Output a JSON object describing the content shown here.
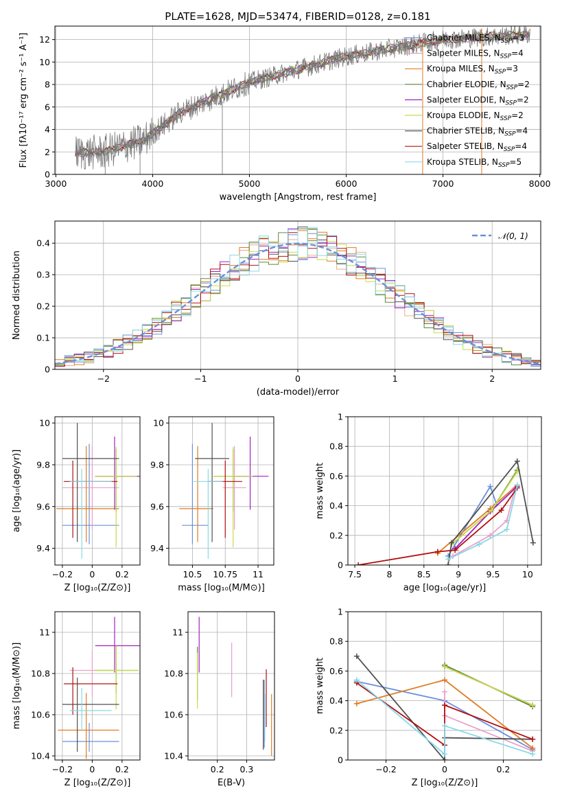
{
  "title": "PLATE=1628, MJD=53474, FIBERID=0128, z=0.181",
  "colors": [
    "#6a8fd9",
    "#e8ac8c",
    "#e07a1f",
    "#5c8a3c",
    "#a020c0",
    "#c8dc46",
    "#505050",
    "#b01010",
    "#88d8e8"
  ],
  "chart_data": [
    {
      "id": "spectrum",
      "type": "line",
      "xlabel": "wavelength [Angstrom, rest frame]",
      "ylabel": "Flux [fλ10⁻¹⁷ erg cm⁻² s⁻¹ A⁻¹]",
      "xlim": [
        2990,
        8010
      ],
      "ylim": [
        0,
        13.2
      ],
      "xticks": [
        3000,
        4000,
        5000,
        6000,
        7000,
        8000
      ],
      "yticks": [
        0,
        2,
        4,
        6,
        8,
        10,
        12
      ],
      "continuum": {
        "x": [
          3200,
          3500,
          3900,
          4300,
          5000,
          6000,
          7000,
          7900
        ],
        "y": [
          1.9,
          2.0,
          3.0,
          5.6,
          8.2,
          10.5,
          12.0,
          12.5
        ]
      },
      "legend": [
        {
          "name": "Chabrier MILES, N",
          "sub": "SSP",
          "tail": "=3",
          "color": "#6a8fd9"
        },
        {
          "name": "Salpeter MILES, N",
          "sub": "SSP",
          "tail": "=4",
          "color": "#e8a0c8"
        },
        {
          "name": "Kroupa MILES, N",
          "sub": "SSP",
          "tail": "=3",
          "color": "#e07a1f"
        },
        {
          "name": "Chabrier ELODIE, N",
          "sub": "SSP",
          "tail": "=2",
          "color": "#5c8a3c"
        },
        {
          "name": "Salpeter ELODIE, N",
          "sub": "SSP",
          "tail": "=2",
          "color": "#a020c0"
        },
        {
          "name": "Kroupa ELODIE, N",
          "sub": "SSP",
          "tail": "=2",
          "color": "#c8dc46"
        },
        {
          "name": "Chabrier STELIB, N",
          "sub": "SSP",
          "tail": "=4",
          "color": "#505050"
        },
        {
          "name": "Salpeter STELIB, N",
          "sub": "SSP",
          "tail": "=4",
          "color": "#b01010"
        },
        {
          "name": "Kroupa STELIB, N",
          "sub": "SSP",
          "tail": "=5",
          "color": "#88d8e8"
        }
      ]
    },
    {
      "id": "residuals",
      "type": "line",
      "xlabel": "(data-model)/error",
      "ylabel": "Normed distribution",
      "xlim": [
        -2.5,
        2.5
      ],
      "ylim": [
        0,
        0.47
      ],
      "xticks": [
        -2,
        -1,
        0,
        1,
        2
      ],
      "yticks": [
        0.0,
        0.1,
        0.2,
        0.3,
        0.4
      ],
      "normal_label": "𝒩(0, 1)",
      "normal_color": "#6a8fd9"
    },
    {
      "id": "age_vs_Z",
      "type": "errorbar",
      "xlabel": "Z [log₁₀(Z/Z⊙)]",
      "ylabel": "age  [log₁₀(age/yr)]",
      "xlim": [
        -0.25,
        0.32
      ],
      "ylim": [
        9.32,
        10.03
      ],
      "xticks": [
        -0.2,
        0.0,
        0.2
      ],
      "yticks": [
        9.4,
        9.6,
        9.8,
        10.0
      ],
      "points": [
        {
          "x": -0.02,
          "xerr": [
            0.18,
            0.2
          ],
          "y": 9.51,
          "yerr": [
            0.09,
            0.39
          ],
          "color": "#6a8fd9"
        },
        {
          "x": 0.0,
          "xerr": [
            0.2,
            0.18
          ],
          "y": 9.69,
          "yerr": [
            0.2,
            0.2
          ],
          "color": "#e8a0c8"
        },
        {
          "x": -0.04,
          "xerr": [
            0.2,
            0.22
          ],
          "y": 9.59,
          "yerr": [
            0.16,
            0.3
          ],
          "color": "#e07a1f"
        },
        {
          "x": 0.16,
          "xerr": [
            0.14,
            0.15
          ],
          "y": 9.745,
          "yerr": [
            0.17,
            0.13
          ],
          "color": "#5c8a3c"
        },
        {
          "x": 0.15,
          "xerr": [
            0.13,
            0.17
          ],
          "y": 9.745,
          "yerr": [
            0.16,
            0.19
          ],
          "color": "#a020c0"
        },
        {
          "x": 0.16,
          "xerr": [
            0.14,
            0.14
          ],
          "y": 9.745,
          "yerr": [
            0.34,
            0.14
          ],
          "color": "#c8dc46"
        },
        {
          "x": -0.1,
          "xerr": [
            0.1,
            0.28
          ],
          "y": 9.83,
          "yerr": [
            0.4,
            0.17
          ],
          "color": "#505050"
        },
        {
          "x": -0.13,
          "xerr": [
            0.06,
            0.3
          ],
          "y": 9.72,
          "yerr": [
            0.27,
            0.1
          ],
          "color": "#b01010"
        },
        {
          "x": -0.07,
          "xerr": [
            0.08,
            0.2
          ],
          "y": 9.72,
          "yerr": [
            0.37,
            0.06
          ],
          "color": "#88d8e8"
        }
      ]
    },
    {
      "id": "age_vs_mass",
      "type": "errorbar",
      "xlabel": "mass [log₁₀(M/M⊙)]",
      "ylabel": "",
      "xlim": [
        10.32,
        11.12
      ],
      "ylim": [
        9.32,
        10.03
      ],
      "xticks": [
        10.5,
        10.75,
        11.0
      ],
      "yticks": [
        9.4,
        9.6,
        9.8,
        10.0
      ],
      "points": [
        {
          "x": 10.5,
          "xerr": [
            0.08,
            0.12
          ],
          "y": 9.51,
          "yerr": [
            0.09,
            0.39
          ],
          "color": "#6a8fd9"
        },
        {
          "x": 10.82,
          "xerr": [
            0.09,
            0.09
          ],
          "y": 9.69,
          "yerr": [
            0.2,
            0.2
          ],
          "color": "#e8a0c8"
        },
        {
          "x": 10.54,
          "xerr": [
            0.14,
            0.12
          ],
          "y": 9.59,
          "yerr": [
            0.16,
            0.3
          ],
          "color": "#e07a1f"
        },
        {
          "x": 10.81,
          "xerr": [
            0.15,
            0.15
          ],
          "y": 9.745,
          "yerr": [
            0.17,
            0.13
          ],
          "color": "#5c8a3c"
        },
        {
          "x": 10.94,
          "xerr": [
            0.11,
            0.14
          ],
          "y": 9.745,
          "yerr": [
            0.16,
            0.19
          ],
          "color": "#a020c0"
        },
        {
          "x": 10.81,
          "xerr": [
            0.15,
            0.15
          ],
          "y": 9.745,
          "yerr": [
            0.34,
            0.14
          ],
          "color": "#c8dc46"
        },
        {
          "x": 10.65,
          "xerr": [
            0.13,
            0.13
          ],
          "y": 9.83,
          "yerr": [
            0.4,
            0.17
          ],
          "color": "#505050"
        },
        {
          "x": 10.75,
          "xerr": [
            0.13,
            0.13
          ],
          "y": 9.72,
          "yerr": [
            0.27,
            0.1
          ],
          "color": "#b01010"
        },
        {
          "x": 10.62,
          "xerr": [
            0.11,
            0.11
          ],
          "y": 9.72,
          "yerr": [
            0.37,
            0.06
          ],
          "color": "#88d8e8"
        }
      ]
    },
    {
      "id": "weight_vs_age",
      "type": "line",
      "xlabel": "age  [log₁₀(age/yr)]",
      "ylabel": "mass weight",
      "xlim": [
        7.4,
        10.2
      ],
      "ylim": [
        0,
        1.0
      ],
      "xticks": [
        7.5,
        8.0,
        8.5,
        9.0,
        9.5,
        10.0
      ],
      "yticks": [
        0.0,
        0.2,
        0.4,
        0.6,
        0.8,
        1.0
      ],
      "series": [
        {
          "color": "#6a8fd9",
          "x": [
            8.85,
            9.46,
            9.55
          ],
          "y": [
            0.06,
            0.53,
            0.41
          ]
        },
        {
          "color": "#e8a0c8",
          "x": [
            8.92,
            9.46,
            9.7,
            9.82
          ],
          "y": [
            0.06,
            0.2,
            0.3,
            0.52
          ]
        },
        {
          "color": "#e07a1f",
          "x": [
            8.7,
            9.46,
            9.85
          ],
          "y": [
            0.08,
            0.38,
            0.54
          ]
        },
        {
          "color": "#5c8a3c",
          "x": [
            8.9,
            9.48,
            9.85
          ],
          "y": [
            0.14,
            0.37,
            0.64
          ]
        },
        {
          "color": "#a020c0",
          "x": [
            8.95,
            9.46,
            9.85
          ],
          "y": [
            0.11,
            0.36,
            0.53
          ]
        },
        {
          "color": "#c8dc46",
          "x": [
            8.9,
            9.48,
            9.85
          ],
          "y": [
            0.14,
            0.37,
            0.63
          ]
        },
        {
          "color": "#505050",
          "x": [
            8.85,
            8.9,
            9.85,
            10.08
          ],
          "y": [
            0.0,
            0.15,
            0.7,
            0.15
          ]
        },
        {
          "color": "#b01010",
          "x": [
            7.55,
            8.7,
            8.95,
            9.62,
            9.85
          ],
          "y": [
            0.0,
            0.09,
            0.1,
            0.37,
            0.52
          ]
        },
        {
          "color": "#88d8e8",
          "x": [
            8.85,
            9.3,
            9.7,
            9.85
          ],
          "y": [
            0.04,
            0.14,
            0.24,
            0.54
          ]
        }
      ]
    },
    {
      "id": "mass_vs_Z",
      "type": "errorbar",
      "xlabel": "Z [log₁₀(Z/Z⊙)]",
      "ylabel": "mass [log₁₀(M/M⊙)]",
      "xlim": [
        -0.25,
        0.32
      ],
      "ylim": [
        10.38,
        11.1
      ],
      "xticks": [
        -0.2,
        0.0,
        0.2
      ],
      "yticks": [
        10.4,
        10.6,
        10.8,
        11.0
      ],
      "points": [
        {
          "x": -0.02,
          "xerr": [
            0.18,
            0.2
          ],
          "y": 10.47,
          "yerr": [
            0.05,
            0.09
          ],
          "color": "#6a8fd9"
        },
        {
          "x": 0.0,
          "xerr": [
            0.15,
            0.15
          ],
          "y": 10.815,
          "yerr": [
            0.13,
            0.1
          ],
          "color": "#e8a0c8"
        },
        {
          "x": -0.04,
          "xerr": [
            0.19,
            0.22
          ],
          "y": 10.525,
          "yerr": [
            0.14,
            0.18
          ],
          "color": "#e07a1f"
        },
        {
          "x": 0.16,
          "xerr": [
            0.14,
            0.15
          ],
          "y": 10.815,
          "yerr": [
            0.11,
            0.12
          ],
          "color": "#5c8a3c"
        },
        {
          "x": 0.15,
          "xerr": [
            0.13,
            0.17
          ],
          "y": 10.935,
          "yerr": [
            0.13,
            0.14
          ],
          "color": "#a020c0"
        },
        {
          "x": 0.16,
          "xerr": [
            0.14,
            0.15
          ],
          "y": 10.815,
          "yerr": [
            0.19,
            0.12
          ],
          "color": "#c8dc46"
        },
        {
          "x": -0.1,
          "xerr": [
            0.1,
            0.28
          ],
          "y": 10.65,
          "yerr": [
            0.23,
            0.13
          ],
          "color": "#505050"
        },
        {
          "x": -0.13,
          "xerr": [
            0.06,
            0.3
          ],
          "y": 10.75,
          "yerr": [
            0.15,
            0.08
          ],
          "color": "#b01010"
        },
        {
          "x": -0.07,
          "xerr": [
            0.08,
            0.2
          ],
          "y": 10.62,
          "yerr": [
            0.1,
            0.11
          ],
          "color": "#88d8e8"
        }
      ]
    },
    {
      "id": "mass_vs_ebv",
      "type": "errorbar",
      "xlabel": "E(B-V)",
      "ylabel": "",
      "xlim": [
        0.1,
        0.395
      ],
      "ylim": [
        10.38,
        11.1
      ],
      "xticks": [
        0.2,
        0.3
      ],
      "yticks": [
        10.4,
        10.6,
        10.8,
        11.0
      ],
      "points": [
        {
          "x": 0.36,
          "y": 10.6,
          "yerr": [
            0.16,
            0.17
          ],
          "color": "#6a8fd9"
        },
        {
          "x": 0.249,
          "y": 10.815,
          "yerr": [
            0.13,
            0.135
          ],
          "color": "#e8a0c8"
        },
        {
          "x": 0.385,
          "y": 10.55,
          "yerr": [
            0.15,
            0.15
          ],
          "color": "#e07a1f"
        },
        {
          "x": 0.132,
          "y": 10.8,
          "yerr": [
            0.13,
            0.13
          ],
          "color": "#5c8a3c"
        },
        {
          "x": 0.138,
          "y": 10.935,
          "yerr": [
            0.13,
            0.14
          ],
          "color": "#a020c0"
        },
        {
          "x": 0.132,
          "y": 10.8,
          "yerr": [
            0.17,
            0.1
          ],
          "color": "#c8dc46"
        },
        {
          "x": 0.357,
          "y": 10.6,
          "yerr": [
            0.17,
            0.17
          ],
          "color": "#505050"
        },
        {
          "x": 0.367,
          "y": 10.67,
          "yerr": [
            0.13,
            0.15
          ],
          "color": "#b01010"
        },
        {
          "x": 0.362,
          "y": 10.57,
          "yerr": [
            0.1,
            0.13
          ],
          "color": "#88d8e8"
        }
      ]
    },
    {
      "id": "weight_vs_Z",
      "type": "line",
      "xlabel": "Z [log₁₀(Z/Z⊙)]",
      "ylabel": "mass weight",
      "xlim": [
        -0.33,
        0.33
      ],
      "ylim": [
        0,
        1.0
      ],
      "xticks": [
        -0.2,
        0.0,
        0.2
      ],
      "yticks": [
        0.0,
        0.2,
        0.4,
        0.6,
        0.8,
        1.0
      ],
      "series": [
        {
          "color": "#6a8fd9",
          "x": [
            -0.3,
            0.0,
            0.3
          ],
          "y": [
            0.53,
            0.4,
            0.07
          ]
        },
        {
          "color": "#e8a0c8",
          "x": [
            0.0,
            0.0,
            0.3
          ],
          "y": [
            0.46,
            0.3,
            0.06
          ]
        },
        {
          "color": "#e07a1f",
          "x": [
            -0.3,
            0.0,
            0.3
          ],
          "y": [
            0.38,
            0.54,
            0.08
          ]
        },
        {
          "color": "#5c8a3c",
          "x": [
            0.0,
            0.3
          ],
          "y": [
            0.64,
            0.36
          ]
        },
        {
          "color": "#a020c0",
          "x": [
            0.0,
            0.3
          ],
          "y": [
            0.63,
            0.37
          ]
        },
        {
          "color": "#c8dc46",
          "x": [
            0.0,
            0.3
          ],
          "y": [
            0.63,
            0.37
          ]
        },
        {
          "color": "#505050",
          "x": [
            -0.3,
            0.0,
            0.0,
            0.3
          ],
          "y": [
            0.7,
            0.0,
            0.15,
            0.14
          ]
        },
        {
          "color": "#b01010",
          "x": [
            -0.3,
            0.0,
            0.0,
            0.3
          ],
          "y": [
            0.52,
            0.1,
            0.37,
            0.14
          ]
        },
        {
          "color": "#88d8e8",
          "x": [
            -0.3,
            0.0,
            0.0,
            0.3
          ],
          "y": [
            0.54,
            0.04,
            0.23,
            0.04
          ]
        }
      ]
    }
  ]
}
